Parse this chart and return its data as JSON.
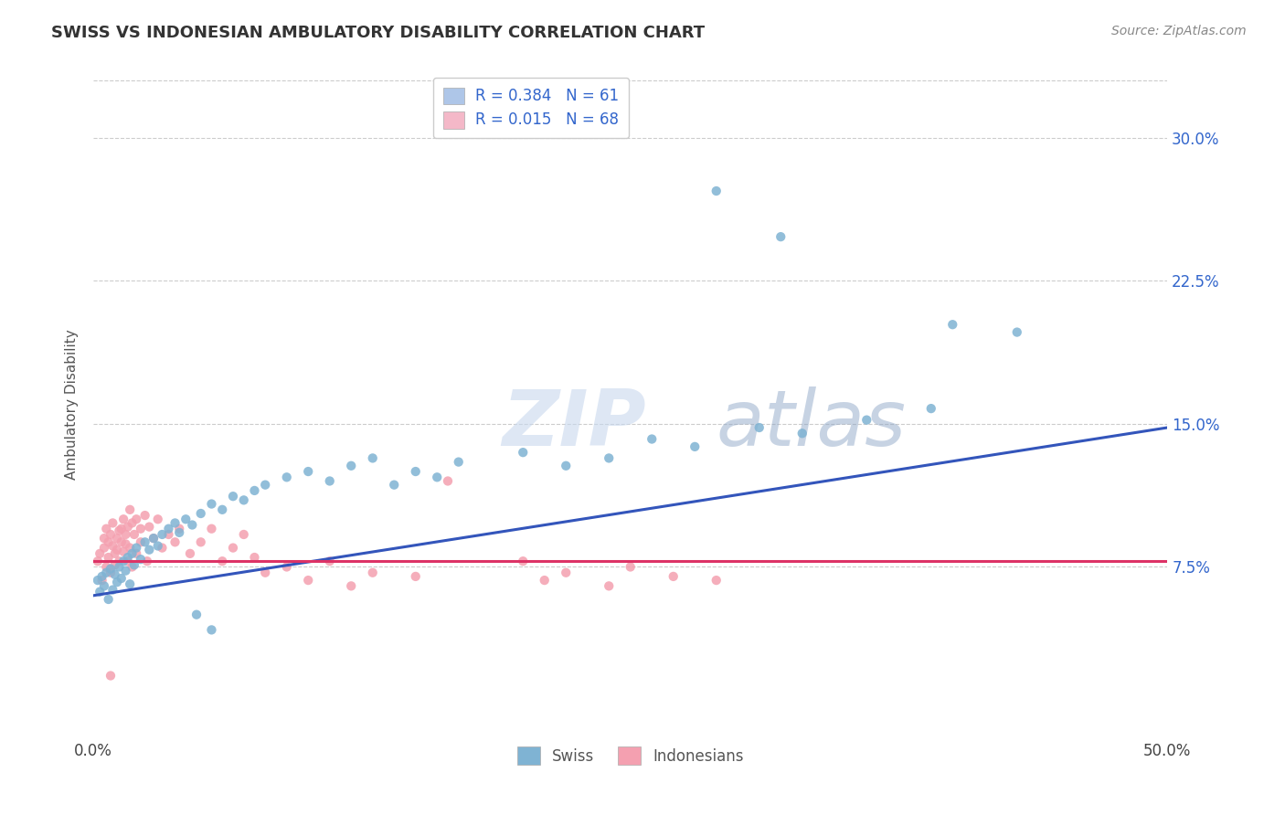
{
  "title": "SWISS VS INDONESIAN AMBULATORY DISABILITY CORRELATION CHART",
  "source": "Source: ZipAtlas.com",
  "ylabel": "Ambulatory Disability",
  "ytick_labels": [
    "7.5%",
    "15.0%",
    "22.5%",
    "30.0%"
  ],
  "ytick_values": [
    0.075,
    0.15,
    0.225,
    0.3
  ],
  "xlim": [
    0.0,
    0.5
  ],
  "ylim": [
    -0.015,
    0.335
  ],
  "legend_entries": [
    {
      "label": "R = 0.384   N = 61",
      "color": "#aec6e8",
      "text_color": "#3366cc"
    },
    {
      "label": "R = 0.015   N = 68",
      "color": "#f4b8c8",
      "text_color": "#3366cc"
    }
  ],
  "legend_bottom_labels": [
    "Swiss",
    "Indonesians"
  ],
  "swiss_color": "#7fb3d3",
  "indonesian_color": "#f4a0b0",
  "swiss_line_color": "#3355bb",
  "indonesian_line_color": "#dd3366",
  "background_color": "#ffffff",
  "grid_color": "#cccccc",
  "swiss_points": [
    [
      0.002,
      0.068
    ],
    [
      0.003,
      0.062
    ],
    [
      0.004,
      0.07
    ],
    [
      0.005,
      0.065
    ],
    [
      0.006,
      0.072
    ],
    [
      0.007,
      0.058
    ],
    [
      0.008,
      0.074
    ],
    [
      0.009,
      0.063
    ],
    [
      0.01,
      0.071
    ],
    [
      0.011,
      0.067
    ],
    [
      0.012,
      0.075
    ],
    [
      0.013,
      0.069
    ],
    [
      0.014,
      0.078
    ],
    [
      0.015,
      0.073
    ],
    [
      0.016,
      0.08
    ],
    [
      0.017,
      0.066
    ],
    [
      0.018,
      0.082
    ],
    [
      0.019,
      0.076
    ],
    [
      0.02,
      0.085
    ],
    [
      0.022,
      0.079
    ],
    [
      0.024,
      0.088
    ],
    [
      0.026,
      0.084
    ],
    [
      0.028,
      0.09
    ],
    [
      0.03,
      0.086
    ],
    [
      0.032,
      0.092
    ],
    [
      0.035,
      0.095
    ],
    [
      0.038,
      0.098
    ],
    [
      0.04,
      0.093
    ],
    [
      0.043,
      0.1
    ],
    [
      0.046,
      0.097
    ],
    [
      0.05,
      0.103
    ],
    [
      0.055,
      0.108
    ],
    [
      0.06,
      0.105
    ],
    [
      0.065,
      0.112
    ],
    [
      0.07,
      0.11
    ],
    [
      0.075,
      0.115
    ],
    [
      0.08,
      0.118
    ],
    [
      0.09,
      0.122
    ],
    [
      0.1,
      0.125
    ],
    [
      0.11,
      0.12
    ],
    [
      0.12,
      0.128
    ],
    [
      0.13,
      0.132
    ],
    [
      0.14,
      0.118
    ],
    [
      0.15,
      0.125
    ],
    [
      0.16,
      0.122
    ],
    [
      0.17,
      0.13
    ],
    [
      0.2,
      0.135
    ],
    [
      0.22,
      0.128
    ],
    [
      0.24,
      0.132
    ],
    [
      0.26,
      0.142
    ],
    [
      0.28,
      0.138
    ],
    [
      0.31,
      0.148
    ],
    [
      0.33,
      0.145
    ],
    [
      0.36,
      0.152
    ],
    [
      0.39,
      0.158
    ],
    [
      0.29,
      0.272
    ],
    [
      0.32,
      0.248
    ],
    [
      0.4,
      0.202
    ],
    [
      0.43,
      0.198
    ],
    [
      0.048,
      0.05
    ],
    [
      0.055,
      0.042
    ]
  ],
  "indonesian_points": [
    [
      0.002,
      0.078
    ],
    [
      0.003,
      0.082
    ],
    [
      0.004,
      0.068
    ],
    [
      0.005,
      0.085
    ],
    [
      0.005,
      0.09
    ],
    [
      0.006,
      0.075
    ],
    [
      0.006,
      0.095
    ],
    [
      0.007,
      0.08
    ],
    [
      0.007,
      0.088
    ],
    [
      0.008,
      0.092
    ],
    [
      0.008,
      0.072
    ],
    [
      0.009,
      0.086
    ],
    [
      0.009,
      0.098
    ],
    [
      0.01,
      0.082
    ],
    [
      0.01,
      0.076
    ],
    [
      0.011,
      0.09
    ],
    [
      0.011,
      0.084
    ],
    [
      0.012,
      0.094
    ],
    [
      0.012,
      0.078
    ],
    [
      0.013,
      0.088
    ],
    [
      0.013,
      0.095
    ],
    [
      0.014,
      0.083
    ],
    [
      0.014,
      0.1
    ],
    [
      0.015,
      0.087
    ],
    [
      0.015,
      0.092
    ],
    [
      0.016,
      0.096
    ],
    [
      0.016,
      0.078
    ],
    [
      0.017,
      0.105
    ],
    [
      0.017,
      0.085
    ],
    [
      0.018,
      0.098
    ],
    [
      0.018,
      0.075
    ],
    [
      0.019,
      0.092
    ],
    [
      0.02,
      0.1
    ],
    [
      0.02,
      0.082
    ],
    [
      0.022,
      0.095
    ],
    [
      0.022,
      0.088
    ],
    [
      0.024,
      0.102
    ],
    [
      0.025,
      0.078
    ],
    [
      0.026,
      0.096
    ],
    [
      0.028,
      0.09
    ],
    [
      0.03,
      0.1
    ],
    [
      0.032,
      0.085
    ],
    [
      0.035,
      0.092
    ],
    [
      0.038,
      0.088
    ],
    [
      0.04,
      0.095
    ],
    [
      0.045,
      0.082
    ],
    [
      0.05,
      0.088
    ],
    [
      0.055,
      0.095
    ],
    [
      0.06,
      0.078
    ],
    [
      0.065,
      0.085
    ],
    [
      0.07,
      0.092
    ],
    [
      0.075,
      0.08
    ],
    [
      0.08,
      0.072
    ],
    [
      0.09,
      0.075
    ],
    [
      0.1,
      0.068
    ],
    [
      0.11,
      0.078
    ],
    [
      0.12,
      0.065
    ],
    [
      0.13,
      0.072
    ],
    [
      0.15,
      0.07
    ],
    [
      0.165,
      0.12
    ],
    [
      0.2,
      0.078
    ],
    [
      0.21,
      0.068
    ],
    [
      0.22,
      0.072
    ],
    [
      0.24,
      0.065
    ],
    [
      0.25,
      0.075
    ],
    [
      0.27,
      0.07
    ],
    [
      0.29,
      0.068
    ],
    [
      0.008,
      0.018
    ]
  ]
}
